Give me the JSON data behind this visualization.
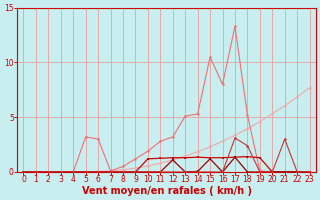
{
  "bg_color": "#c8eef0",
  "grid_color": "#e8a0a0",
  "xlabel": "Vent moyen/en rafales ( km/h )",
  "xlim": [
    -0.5,
    23.5
  ],
  "ylim": [
    0,
    15
  ],
  "yticks": [
    0,
    5,
    10,
    15
  ],
  "xticks": [
    0,
    1,
    2,
    3,
    4,
    5,
    6,
    7,
    8,
    9,
    10,
    11,
    12,
    13,
    14,
    15,
    16,
    17,
    18,
    19,
    20,
    21,
    22,
    23
  ],
  "line_smooth_x": [
    0,
    1,
    2,
    3,
    4,
    5,
    6,
    7,
    8,
    9,
    10,
    11,
    12,
    13,
    14,
    15,
    16,
    17,
    18,
    19,
    20,
    21,
    22,
    23
  ],
  "line_smooth_y": [
    0,
    0,
    0,
    0,
    0,
    0,
    0.05,
    0.1,
    0.2,
    0.35,
    0.55,
    0.8,
    1.1,
    1.45,
    1.85,
    2.3,
    2.8,
    3.35,
    3.95,
    4.6,
    5.3,
    6.05,
    6.85,
    7.7
  ],
  "line_smooth_color": "#f0a8a8",
  "line_peak_x": [
    0,
    1,
    2,
    3,
    4,
    5,
    6,
    7,
    8,
    9,
    10,
    11,
    12,
    13,
    14,
    15,
    16,
    17,
    18,
    19,
    20,
    21,
    22,
    23
  ],
  "line_peak_y": [
    0,
    0,
    0,
    0,
    0,
    3.2,
    3.0,
    0.1,
    0.5,
    1.2,
    1.9,
    2.8,
    3.2,
    5.1,
    5.3,
    10.5,
    8.0,
    13.3,
    5.2,
    0.1,
    0,
    0,
    0,
    0
  ],
  "line_peak_color": "#f07070",
  "line_med_x": [
    0,
    1,
    2,
    3,
    4,
    5,
    6,
    7,
    8,
    9,
    10,
    11,
    12,
    13,
    14,
    15,
    16,
    17,
    18,
    19,
    20,
    21,
    22,
    23
  ],
  "line_med_y": [
    0,
    0,
    0,
    0,
    0,
    0,
    0,
    0,
    0,
    0,
    1.2,
    1.25,
    1.3,
    1.3,
    1.35,
    1.3,
    1.3,
    1.35,
    1.4,
    1.3,
    0,
    0,
    0,
    0
  ],
  "line_med_color": "#cc0000",
  "line_low_x": [
    0,
    1,
    2,
    3,
    4,
    5,
    6,
    7,
    8,
    9,
    10,
    11,
    12,
    13,
    14,
    15,
    16,
    17,
    18,
    19,
    20,
    21,
    22,
    23
  ],
  "line_low_y": [
    0,
    0,
    0,
    0,
    0,
    0,
    0,
    0,
    0,
    0,
    0,
    0,
    1.1,
    0,
    0.05,
    1.2,
    0,
    1.35,
    0,
    0,
    0,
    0,
    0,
    0
  ],
  "line_low_color": "#990000",
  "line_var_x": [
    0,
    1,
    2,
    3,
    4,
    5,
    6,
    7,
    8,
    9,
    10,
    11,
    12,
    13,
    14,
    15,
    16,
    17,
    18,
    19,
    20,
    21,
    22,
    23
  ],
  "line_var_y": [
    0,
    0,
    0,
    0,
    0,
    0,
    0,
    0,
    0,
    0,
    0,
    0,
    0,
    0,
    0,
    0,
    0,
    3.1,
    2.4,
    0,
    0,
    3.0,
    0,
    0
  ],
  "line_var_color": "#cc3333",
  "marker_size": 1.8,
  "tick_color": "#cc0000",
  "spine_color": "#cc0000",
  "tick_labelsize": 5.5,
  "label_fontsize": 7,
  "label_color": "#cc0000",
  "label_fontweight": "bold"
}
